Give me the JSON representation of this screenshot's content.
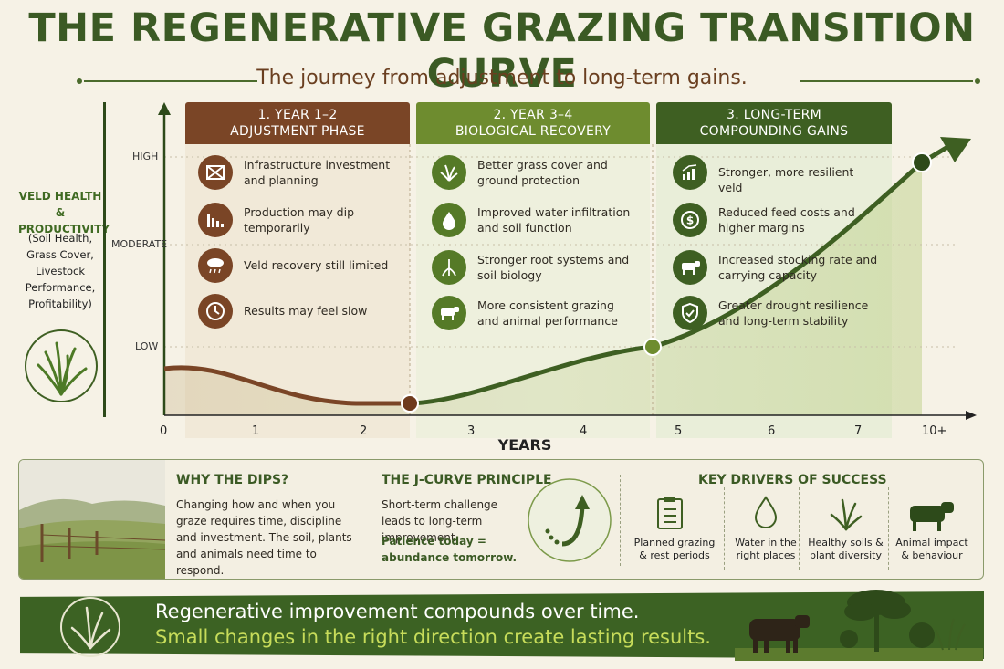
{
  "header": {
    "title": "THE REGENERATIVE GRAZING TRANSITION CURVE",
    "subtitle": "The journey from adjustment to long-term gains."
  },
  "y_axis": {
    "label": "VELD HEALTH & PRODUCTIVITY",
    "sublabel": "(Soil Health, Grass Cover, Livestock Performance, Profitability)",
    "ticks": [
      "HIGH",
      "MODERATE",
      "LOW"
    ]
  },
  "x_axis": {
    "label": "YEARS",
    "ticks": [
      "0",
      "1",
      "2",
      "3",
      "4",
      "5",
      "6",
      "7",
      "10+"
    ]
  },
  "phases": [
    {
      "title": "1. YEAR 1–2",
      "subtitle": "ADJUSTMENT PHASE",
      "color": "#7a4526",
      "items": [
        {
          "icon": "fence-icon",
          "text": "Infrastructure investment and planning"
        },
        {
          "icon": "declining-bars-icon",
          "text": "Production may dip temporarily"
        },
        {
          "icon": "rain-cloud-icon",
          "text": "Veld recovery still limited"
        },
        {
          "icon": "clock-icon",
          "text": "Results may feel slow"
        }
      ]
    },
    {
      "title": "2. YEAR 3–4",
      "subtitle": "BIOLOGICAL RECOVERY",
      "color": "#6e8c2f",
      "items": [
        {
          "icon": "grass-icon",
          "text": "Better grass cover and ground protection"
        },
        {
          "icon": "water-drop-icon",
          "text": "Improved water infiltration and soil function"
        },
        {
          "icon": "roots-icon",
          "text": "Stronger root systems and soil biology"
        },
        {
          "icon": "cow-icon",
          "text": "More consistent grazing and animal performance"
        }
      ]
    },
    {
      "title": "3. LONG-TERM",
      "subtitle": "COMPOUNDING GAINS",
      "color": "#3e5f22",
      "items": [
        {
          "icon": "growth-chart-icon",
          "text": "Stronger, more resilient veld"
        },
        {
          "icon": "dollar-icon",
          "text": "Reduced feed costs and higher margins"
        },
        {
          "icon": "cow-icon",
          "text": "Increased stocking rate and carrying capacity"
        },
        {
          "icon": "shield-check-icon",
          "text": "Greater drought resilience and long-term stability"
        }
      ]
    }
  ],
  "bottom": {
    "why": {
      "heading": "WHY THE DIPS?",
      "text": "Changing how and when you graze requires time, discipline and investment. The soil, plants and animals need time to respond."
    },
    "jcurve": {
      "heading": "THE J-CURVE PRINCIPLE",
      "text": "Short-term challenge leads to long-term improvement.",
      "emphasis": "Patience today = abundance tomorrow."
    },
    "drivers": {
      "heading": "KEY DRIVERS OF SUCCESS",
      "items": [
        {
          "icon": "clipboard-icon",
          "label": "Planned grazing & rest periods"
        },
        {
          "icon": "water-drop-icon",
          "label": "Water in the right places"
        },
        {
          "icon": "grass-icon",
          "label": "Healthy soils & plant diversity"
        },
        {
          "icon": "cow-icon",
          "label": "Animal impact & behaviour"
        }
      ]
    }
  },
  "banner": {
    "line1": "Regenerative improvement compounds over time.",
    "line2": "Small changes in the right direction create lasting results."
  },
  "colors": {
    "dark_green": "#3e5f22",
    "olive": "#6e8c2f",
    "brown": "#7a4526",
    "lime": "#c7dc5a"
  }
}
